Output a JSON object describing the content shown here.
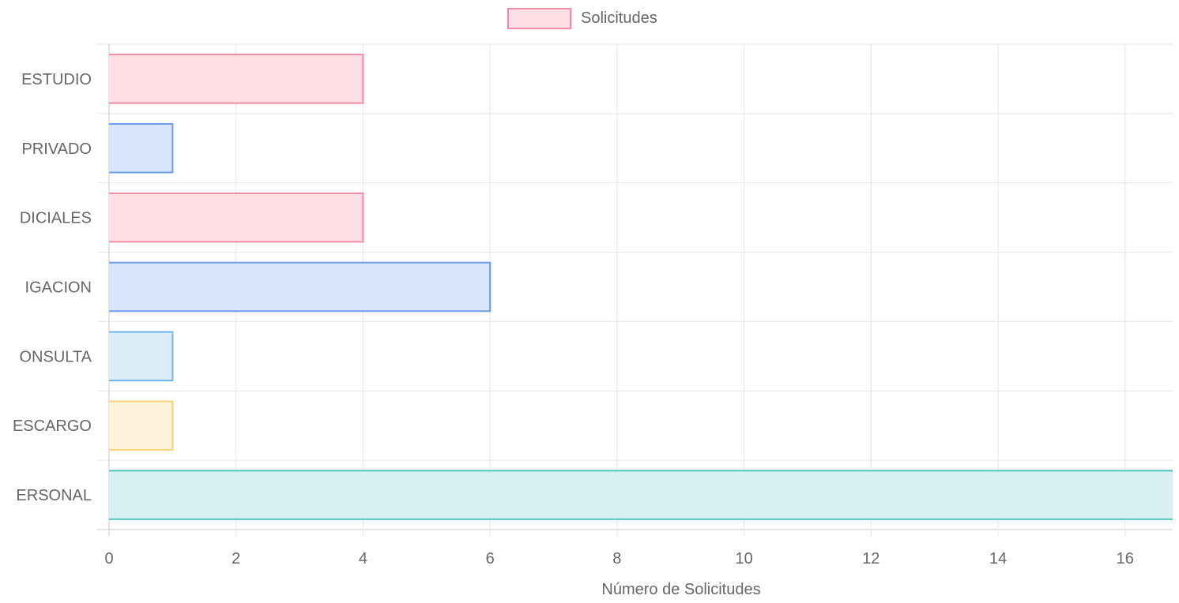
{
  "chart_data": {
    "type": "bar",
    "orientation": "horizontal",
    "categories": [
      "ESTUDIO",
      "PRIVADO",
      "DICIALES",
      "IGACION",
      "ONSULTA",
      "ESCARGO",
      "ERSONAL"
    ],
    "series": [
      {
        "name": "Solicitudes",
        "values": [
          4,
          1,
          4,
          6,
          1,
          1,
          17
        ],
        "fill_colors": [
          "#ffe0e6",
          "#d7e6fb",
          "#ffe0e6",
          "#d7e6fb",
          "#dbeefa",
          "#fff3db",
          "#d9f1f2"
        ],
        "stroke_colors": [
          "#f38aa2",
          "#6d9eeb",
          "#f38aa2",
          "#6d9eeb",
          "#6eb4ea",
          "#f7d27a",
          "#56c0c0"
        ]
      }
    ],
    "xlabel": "Número de Solicitudes",
    "ylabel": "",
    "xticks": [
      0,
      2,
      4,
      6,
      8,
      10,
      12,
      14,
      16
    ],
    "xlim": [
      0,
      16.75
    ],
    "grid": true,
    "legend_position": "top-center",
    "legend": {
      "label": "Solicitudes",
      "fill_color": "#ffe0e6",
      "stroke_color": "#f38aa2"
    }
  }
}
